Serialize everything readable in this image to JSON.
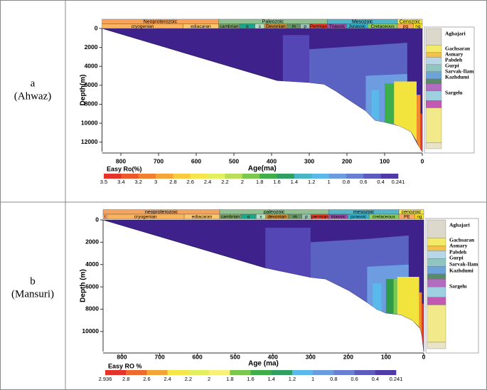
{
  "table": {
    "rows": [
      {
        "label": "a",
        "sublabel": "(Ahwaz)"
      },
      {
        "label": "b",
        "sublabel": "(Mansuri)"
      }
    ]
  },
  "chart_data": [
    {
      "type": "area",
      "xlabel": "Age(ma)",
      "ylabel": "Depth(m)",
      "xlim": [
        850,
        0
      ],
      "ylim": [
        0,
        13000
      ],
      "xticks": [
        800,
        700,
        600,
        500,
        400,
        300,
        200,
        100,
        0
      ],
      "yticks": [
        0,
        2000,
        4000,
        6000,
        8000,
        10000,
        12000
      ],
      "eras": [
        {
          "label": "Neoproterozoic",
          "start": 850,
          "end": 541,
          "color": "#f7a45a"
        },
        {
          "label": "Paleozoic",
          "start": 541,
          "end": 252,
          "color": "#8fc290"
        },
        {
          "label": "Mesozoic",
          "start": 252,
          "end": 66,
          "color": "#52b7c9"
        },
        {
          "label": "Cenozoic",
          "start": 66,
          "end": 0,
          "color": "#f3e54a"
        }
      ],
      "periods": [
        {
          "label": "cryogenian",
          "start": 850,
          "end": 635,
          "color": "#fbb45e"
        },
        {
          "label": "ediacaran",
          "start": 635,
          "end": 541,
          "color": "#fcc76f"
        },
        {
          "label": "cambrian",
          "start": 541,
          "end": 485,
          "color": "#7fa56a"
        },
        {
          "label": "o",
          "start": 485,
          "end": 444,
          "color": "#1aa68a"
        },
        {
          "label": "s",
          "start": 444,
          "end": 419,
          "color": "#b3e1c2"
        },
        {
          "label": "Devonian",
          "start": 419,
          "end": 359,
          "color": "#cb8c37"
        },
        {
          "label": "m",
          "start": 359,
          "end": 323,
          "color": "#678f66"
        },
        {
          "label": "p",
          "start": 323,
          "end": 299,
          "color": "#99c2b5"
        },
        {
          "label": "Permian",
          "start": 299,
          "end": 252,
          "color": "#f04028"
        },
        {
          "label": "Triassic",
          "start": 252,
          "end": 201,
          "color": "#9a4fa4"
        },
        {
          "label": "Jurassic",
          "start": 201,
          "end": 145,
          "color": "#34b2c9"
        },
        {
          "label": "Cretaceous",
          "start": 145,
          "end": 66,
          "color": "#8fca5c"
        },
        {
          "label": "pg",
          "start": 66,
          "end": 23,
          "color": "#fda75f"
        },
        {
          "label": "ng",
          "start": 23,
          "end": 0,
          "color": "#ffe619"
        }
      ],
      "series": [
        {
          "color": "#3f218c",
          "x": [
            850,
            0,
            0,
            10,
            30,
            60,
            100,
            125,
            150,
            200,
            230,
            260,
            300,
            385
          ],
          "values": [
            0,
            0,
            13000,
            12400,
            10900,
            10300,
            9900,
            9700,
            8700,
            7400,
            6600,
            5900,
            5700,
            5500
          ]
        },
        {
          "color": "#5446b4",
          "x": [
            370,
            300,
            300,
            370
          ],
          "values": [
            700,
            700,
            5700,
            5560
          ]
        },
        {
          "color": "#5b63c2",
          "x": [
            300,
            150,
            40,
            40,
            60,
            100,
            125,
            150,
            200,
            230,
            260,
            300
          ],
          "values": [
            2200,
            1800,
            1500,
            10700,
            10300,
            9900,
            9700,
            8700,
            7400,
            6600,
            5900,
            5700
          ]
        },
        {
          "color": "#6e9ce0",
          "x": [
            150,
            40,
            40,
            60,
            100,
            125,
            150
          ],
          "values": [
            5000,
            4800,
            10700,
            10300,
            9900,
            9700,
            8700
          ]
        },
        {
          "color": "#59b9ea",
          "x": [
            135,
            115,
            115,
            135
          ],
          "values": [
            6500,
            6500,
            9800,
            9300
          ]
        },
        {
          "color": "#3cae4c",
          "x": [
            100,
            75,
            75,
            100
          ],
          "values": [
            5800,
            5800,
            10100,
            9900
          ]
        },
        {
          "color": "#f2e43c",
          "x": [
            75,
            15,
            15,
            30,
            60,
            75
          ],
          "values": [
            5600,
            5600,
            11900,
            10900,
            10300,
            10100
          ]
        },
        {
          "color": "#f28a2e",
          "x": [
            15,
            5,
            5,
            10,
            15
          ],
          "values": [
            7000,
            7000,
            12800,
            12400,
            11900
          ]
        },
        {
          "color": "#e8352a",
          "x": [
            5,
            0,
            0,
            5
          ],
          "values": [
            9000,
            9000,
            13000,
            12800
          ]
        }
      ],
      "formations": [
        "Aghajari",
        "Gachsaran",
        "Asmary",
        "Pabdeh",
        "Gurpi",
        "Sarvak-Ilam",
        "Kazhdumi",
        "Sargelu"
      ],
      "colorbar": {
        "title": "Easy Ro(%)",
        "ticks": [
          3.5,
          3.4,
          3.2,
          3,
          2.8,
          2.6,
          2.4,
          2.2,
          2,
          1.8,
          1.6,
          1.4,
          1.2,
          1,
          0.8,
          0.6,
          0.4,
          0.241
        ],
        "colors": [
          "#e63329",
          "#ec5a2c",
          "#f07f2f",
          "#f4a535",
          "#f8cb3f",
          "#f6e64a",
          "#e4ef5e",
          "#b8de5a",
          "#7cc84e",
          "#3fae48",
          "#2f9e60",
          "#48b6c4",
          "#5ab8ea",
          "#6c9ce0",
          "#6a7fd2",
          "#5d5bbd",
          "#4f3aa8"
        ]
      }
    },
    {
      "type": "area",
      "xlabel": "Age (ma)",
      "ylabel": "Depth (m)",
      "xlim": [
        850,
        0
      ],
      "ylim": [
        0,
        11800
      ],
      "xticks": [
        800,
        700,
        600,
        500,
        400,
        300,
        200,
        100,
        0
      ],
      "yticks": [
        0,
        2000,
        4000,
        6000,
        8000,
        10000
      ],
      "eras": [
        {
          "label": "neoproterozoic",
          "start": 850,
          "end": 541,
          "color": "#f7a45a"
        },
        {
          "label": "paleozoic",
          "start": 541,
          "end": 252,
          "color": "#8fc290"
        },
        {
          "label": "mesozoic",
          "start": 252,
          "end": 66,
          "color": "#52b7c9"
        },
        {
          "label": "cenozoic",
          "start": 66,
          "end": 0,
          "color": "#f3e54a"
        }
      ],
      "periods": [
        {
          "label": "t",
          "start": 850,
          "end": 840,
          "color": "#fda66a"
        },
        {
          "label": "cryogenian",
          "start": 840,
          "end": 635,
          "color": "#fbb45e"
        },
        {
          "label": "ediacaran",
          "start": 635,
          "end": 541,
          "color": "#fcc76f"
        },
        {
          "label": "cambrian",
          "start": 541,
          "end": 485,
          "color": "#7fa56a"
        },
        {
          "label": "o",
          "start": 485,
          "end": 444,
          "color": "#1aa68a"
        },
        {
          "label": "s",
          "start": 444,
          "end": 419,
          "color": "#b3e1c2"
        },
        {
          "label": "devonian",
          "start": 419,
          "end": 359,
          "color": "#cb8c37"
        },
        {
          "label": "m",
          "start": 359,
          "end": 323,
          "color": "#678f66"
        },
        {
          "label": "p",
          "start": 323,
          "end": 299,
          "color": "#99c2b5"
        },
        {
          "label": "permian",
          "start": 299,
          "end": 252,
          "color": "#f04028"
        },
        {
          "label": "triassic",
          "start": 252,
          "end": 201,
          "color": "#9a4fa4"
        },
        {
          "label": "jurassic",
          "start": 201,
          "end": 145,
          "color": "#34b2c9"
        },
        {
          "label": "cretaceous",
          "start": 145,
          "end": 66,
          "color": "#8fca5c"
        },
        {
          "label": "PE",
          "start": 66,
          "end": 23,
          "color": "#fda75f"
        },
        {
          "label": "ng",
          "start": 23,
          "end": 0,
          "color": "#ffe619"
        }
      ],
      "series": [
        {
          "color": "#3f218c",
          "x": [
            850,
            0,
            0,
            5,
            10,
            30,
            60,
            100,
            125,
            150,
            200,
            260,
            300,
            420
          ],
          "values": [
            0,
            0,
            11800,
            10300,
            9700,
            9000,
            8500,
            8350,
            8000,
            7400,
            6300,
            5300,
            5150,
            4300
          ]
        },
        {
          "color": "#5446b4",
          "x": [
            420,
            300,
            300,
            420
          ],
          "values": [
            700,
            700,
            5150,
            4300
          ]
        },
        {
          "color": "#5b63c2",
          "x": [
            300,
            150,
            40,
            40,
            60,
            100,
            125,
            150,
            200,
            260,
            300
          ],
          "values": [
            2000,
            1700,
            1400,
            8800,
            8500,
            8350,
            8000,
            7400,
            6300,
            5300,
            5150
          ]
        },
        {
          "color": "#6e9ce0",
          "x": [
            150,
            40,
            40,
            60,
            100,
            125,
            150
          ],
          "values": [
            4200,
            4000,
            8800,
            8500,
            8350,
            8000,
            7400
          ]
        },
        {
          "color": "#59b9ea",
          "x": [
            135,
            112,
            112,
            135
          ],
          "values": [
            5700,
            5700,
            8200,
            7800
          ]
        },
        {
          "color": "#2f9a48",
          "x": [
            100,
            80,
            80,
            100
          ],
          "values": [
            5300,
            5300,
            8400,
            8350
          ]
        },
        {
          "color": "#7cc84e",
          "x": [
            80,
            70,
            70,
            80
          ],
          "values": [
            5300,
            5300,
            8450,
            8400
          ]
        },
        {
          "color": "#f2e43c",
          "x": [
            70,
            12,
            12,
            30,
            60,
            70
          ],
          "values": [
            5100,
            5100,
            9600,
            9000,
            8500,
            8450
          ]
        },
        {
          "color": "#f28a2e",
          "x": [
            12,
            5,
            5,
            10,
            12
          ],
          "values": [
            6500,
            6500,
            10300,
            9700,
            9600
          ]
        },
        {
          "color": "#e8352a",
          "x": [
            5,
            0,
            0,
            5
          ],
          "values": [
            7500,
            7500,
            11800,
            10300
          ]
        }
      ],
      "formations": [
        "Aghajari",
        "Gachsaran",
        "Asmary",
        "Pabdeh",
        "Gurpi",
        "Sarvak-Ilam",
        "Kazhdumi",
        "Sargelu"
      ],
      "colorbar": {
        "title": "Easy RO %",
        "ticks": [
          2.936,
          2.8,
          2.6,
          2.4,
          2.2,
          2,
          1.8,
          1.6,
          1.4,
          1.2,
          1,
          0.8,
          0.6,
          0.4,
          0.241
        ],
        "colors": [
          "#e63329",
          "#ef6a2e",
          "#f4a535",
          "#f6e64a",
          "#e4ef5e",
          "#f9f07a",
          "#7cc84e",
          "#3fae48",
          "#2f9e60",
          "#5ab8ea",
          "#6c9ce0",
          "#6a7fd2",
          "#5d5bbd",
          "#4f3aa8"
        ]
      }
    }
  ]
}
